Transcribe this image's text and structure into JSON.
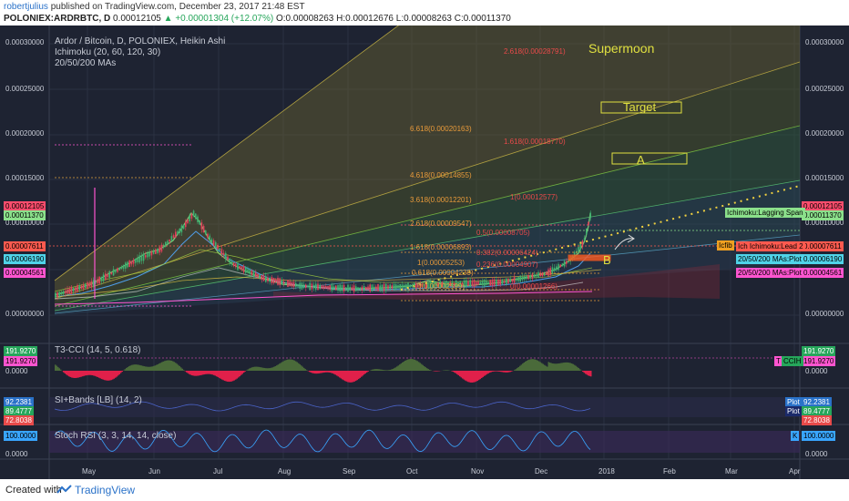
{
  "header": {
    "author": "robertjulius",
    "published": "published on TradingView.com, December 23, 2017 21:48 EST",
    "symbol": "POLONIEX:ARDRBTC, D",
    "last": "0.00012105",
    "change_arrow": "▲",
    "change": "+0.00001304 (+12.07%)",
    "open": "O:0.00008263",
    "high": "H:0.00012676",
    "low": "L:0.00008263",
    "close": "C:0.00011370"
  },
  "main_pane": {
    "title": "Ardor / Bitcoin, D, POLONIEX, Heikin Ashi",
    "study1": "Ichimoku (20, 60, 120, 30)",
    "study2": "20/50/200 MAs",
    "price_axis": [
      "0.00030000",
      "0.00025000",
      "0.00020000",
      "0.00015000",
      "0.00010000",
      "0.00000000"
    ],
    "left_tags": [
      {
        "value": "0.00012105",
        "color": "#ff4d6d"
      },
      {
        "value": "0.00011370",
        "color": "#8be08b"
      },
      {
        "value": "0.00007611",
        "color": "#ff5a4f"
      },
      {
        "value": "0.00006190",
        "color": "#4fd3e8"
      },
      {
        "value": "0.00004561",
        "color": "#ff55d0"
      }
    ],
    "right_tags": [
      {
        "value": "0.00012105",
        "color": "#ff4d6d"
      },
      {
        "value": "0.00011370",
        "color": "#8be08b"
      },
      {
        "value": "0.00007611",
        "color": "#ff5a4f"
      },
      {
        "value": "0.00006190",
        "color": "#4fd3e8"
      },
      {
        "value": "0.00004561",
        "color": "#ff55d0"
      }
    ],
    "right_notes": [
      {
        "text": "Ichimoku:Lagging Span",
        "color": "#8be08b"
      },
      {
        "text": "Icfib",
        "color": "#f0a020"
      },
      {
        "text": "Ich Ichimoku:Lead 2",
        "color": "#ff5a4f"
      },
      {
        "text": "20/50/200 MAs:Plot",
        "color": "#4fd3e8"
      },
      {
        "text": "20/50/200 MAs:Plot",
        "color": "#ff55d0"
      }
    ],
    "fib_labels": [
      {
        "text": "2.618(0.00028791)",
        "color": "#e84a4a"
      },
      {
        "text": "6.618(0.00020163)",
        "color": "#e89a3a"
      },
      {
        "text": "1.618(0.00018770)",
        "color": "#e84a4a"
      },
      {
        "text": "4.618(0.00014855)",
        "color": "#e89a3a"
      },
      {
        "text": "3.618(0.00012201)",
        "color": "#e89a3a"
      },
      {
        "text": "1(0.00012577)",
        "color": "#e84a4a"
      },
      {
        "text": "2.618(0.00009547)",
        "color": "#e89a3a"
      },
      {
        "text": "0.5(0.00008705)",
        "color": "#e84a4a"
      },
      {
        "text": "1.618(0.00006893)",
        "color": "#e89a3a"
      },
      {
        "text": "0.382(0.00006424)",
        "color": "#e84a4a"
      },
      {
        "text": "1(0.00005253)",
        "color": "#e89a3a"
      },
      {
        "text": "0.236(0.00004907)",
        "color": "#e84a4a"
      },
      {
        "text": "0.618(0.00004239)",
        "color": "#e89a3a"
      },
      {
        "text": "0(0.00002599)",
        "color": "#e89a3a"
      },
      {
        "text": "0(0.00001266)",
        "color": "#e84a4a"
      }
    ],
    "annotations": {
      "supermoon": "Supermoon",
      "target": "Target",
      "a": "A",
      "b": "B"
    }
  },
  "cci_pane": {
    "title": "T3-CCI (14, 5, 0.618)",
    "axis": [
      "191.9270",
      "0.0000"
    ],
    "left_tag": "191.9270",
    "right_tag": "191.9270",
    "right_note": "CCIH",
    "right_note2": "T"
  },
  "si_pane": {
    "title": "SI+Bands [LB] (14, 2)",
    "axis": [
      "92.2381",
      "89.4777",
      "72.8038"
    ],
    "right_note": "Plot",
    "right_note2": "Plot"
  },
  "stoch_pane": {
    "title": "Stoch RSI (3, 3, 14, 14, close)",
    "axis": [
      "100.0000",
      "0.0000"
    ],
    "right_note": "K",
    "right_tag": "100.0000"
  },
  "time_axis": [
    "May",
    "Jun",
    "Jul",
    "Aug",
    "Sep",
    "Oct",
    "Nov",
    "Dec",
    "2018",
    "Feb",
    "Mar",
    "Apr"
  ],
  "footer": {
    "created": "Created with",
    "brand": "TradingView"
  },
  "colors": {
    "background": "#1e2332",
    "grid": "#2b3142",
    "text": "#c8ccd6"
  }
}
